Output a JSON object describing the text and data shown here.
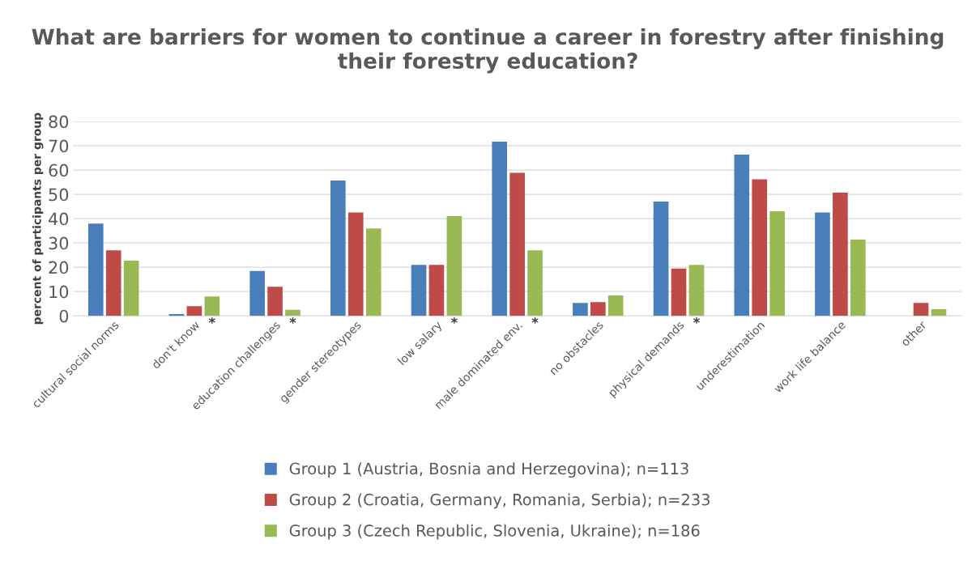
{
  "chart_data": {
    "type": "bar",
    "title": "What are barriers for women to continue a career in forestry after finishing their forestry education?",
    "ylabel": "percent of participants per group",
    "categories": [
      "cultural social norms",
      "don't know",
      "education challenges",
      "gender stereotypes",
      "low salary",
      "male dominated env.",
      "no obstacles",
      "physical demands",
      "underestimation",
      "work life balance",
      "other"
    ],
    "series": [
      {
        "name": "Group 1 (Austria, Bosnia and Herzegovina); n=113",
        "color": "#4a7ebb",
        "values": [
          38,
          0.7,
          18.5,
          55.7,
          21,
          71.7,
          5.3,
          47,
          66.4,
          42.5,
          0
        ]
      },
      {
        "name": "Group 2 (Croatia, Germany, Romania, Serbia); n=233",
        "color": "#be4b48",
        "values": [
          27,
          4,
          12,
          42.5,
          21,
          58.9,
          5.6,
          19.5,
          56.2,
          50.7,
          5.3
        ]
      },
      {
        "name": "Group 3 (Czech Republic, Slovenia, Ukraine); n=186",
        "color": "#98b954",
        "values": [
          22.7,
          8,
          2.5,
          36,
          41,
          27,
          8.4,
          21,
          43,
          31.4,
          2.7
        ]
      }
    ],
    "ylim": [
      0,
      80
    ],
    "yticks": [
      0,
      10,
      20,
      30,
      40,
      50,
      60,
      70,
      80
    ],
    "grid": "y",
    "legend": "bottom",
    "annotations": [
      "*",
      "*",
      "*",
      "*",
      "*"
    ]
  }
}
